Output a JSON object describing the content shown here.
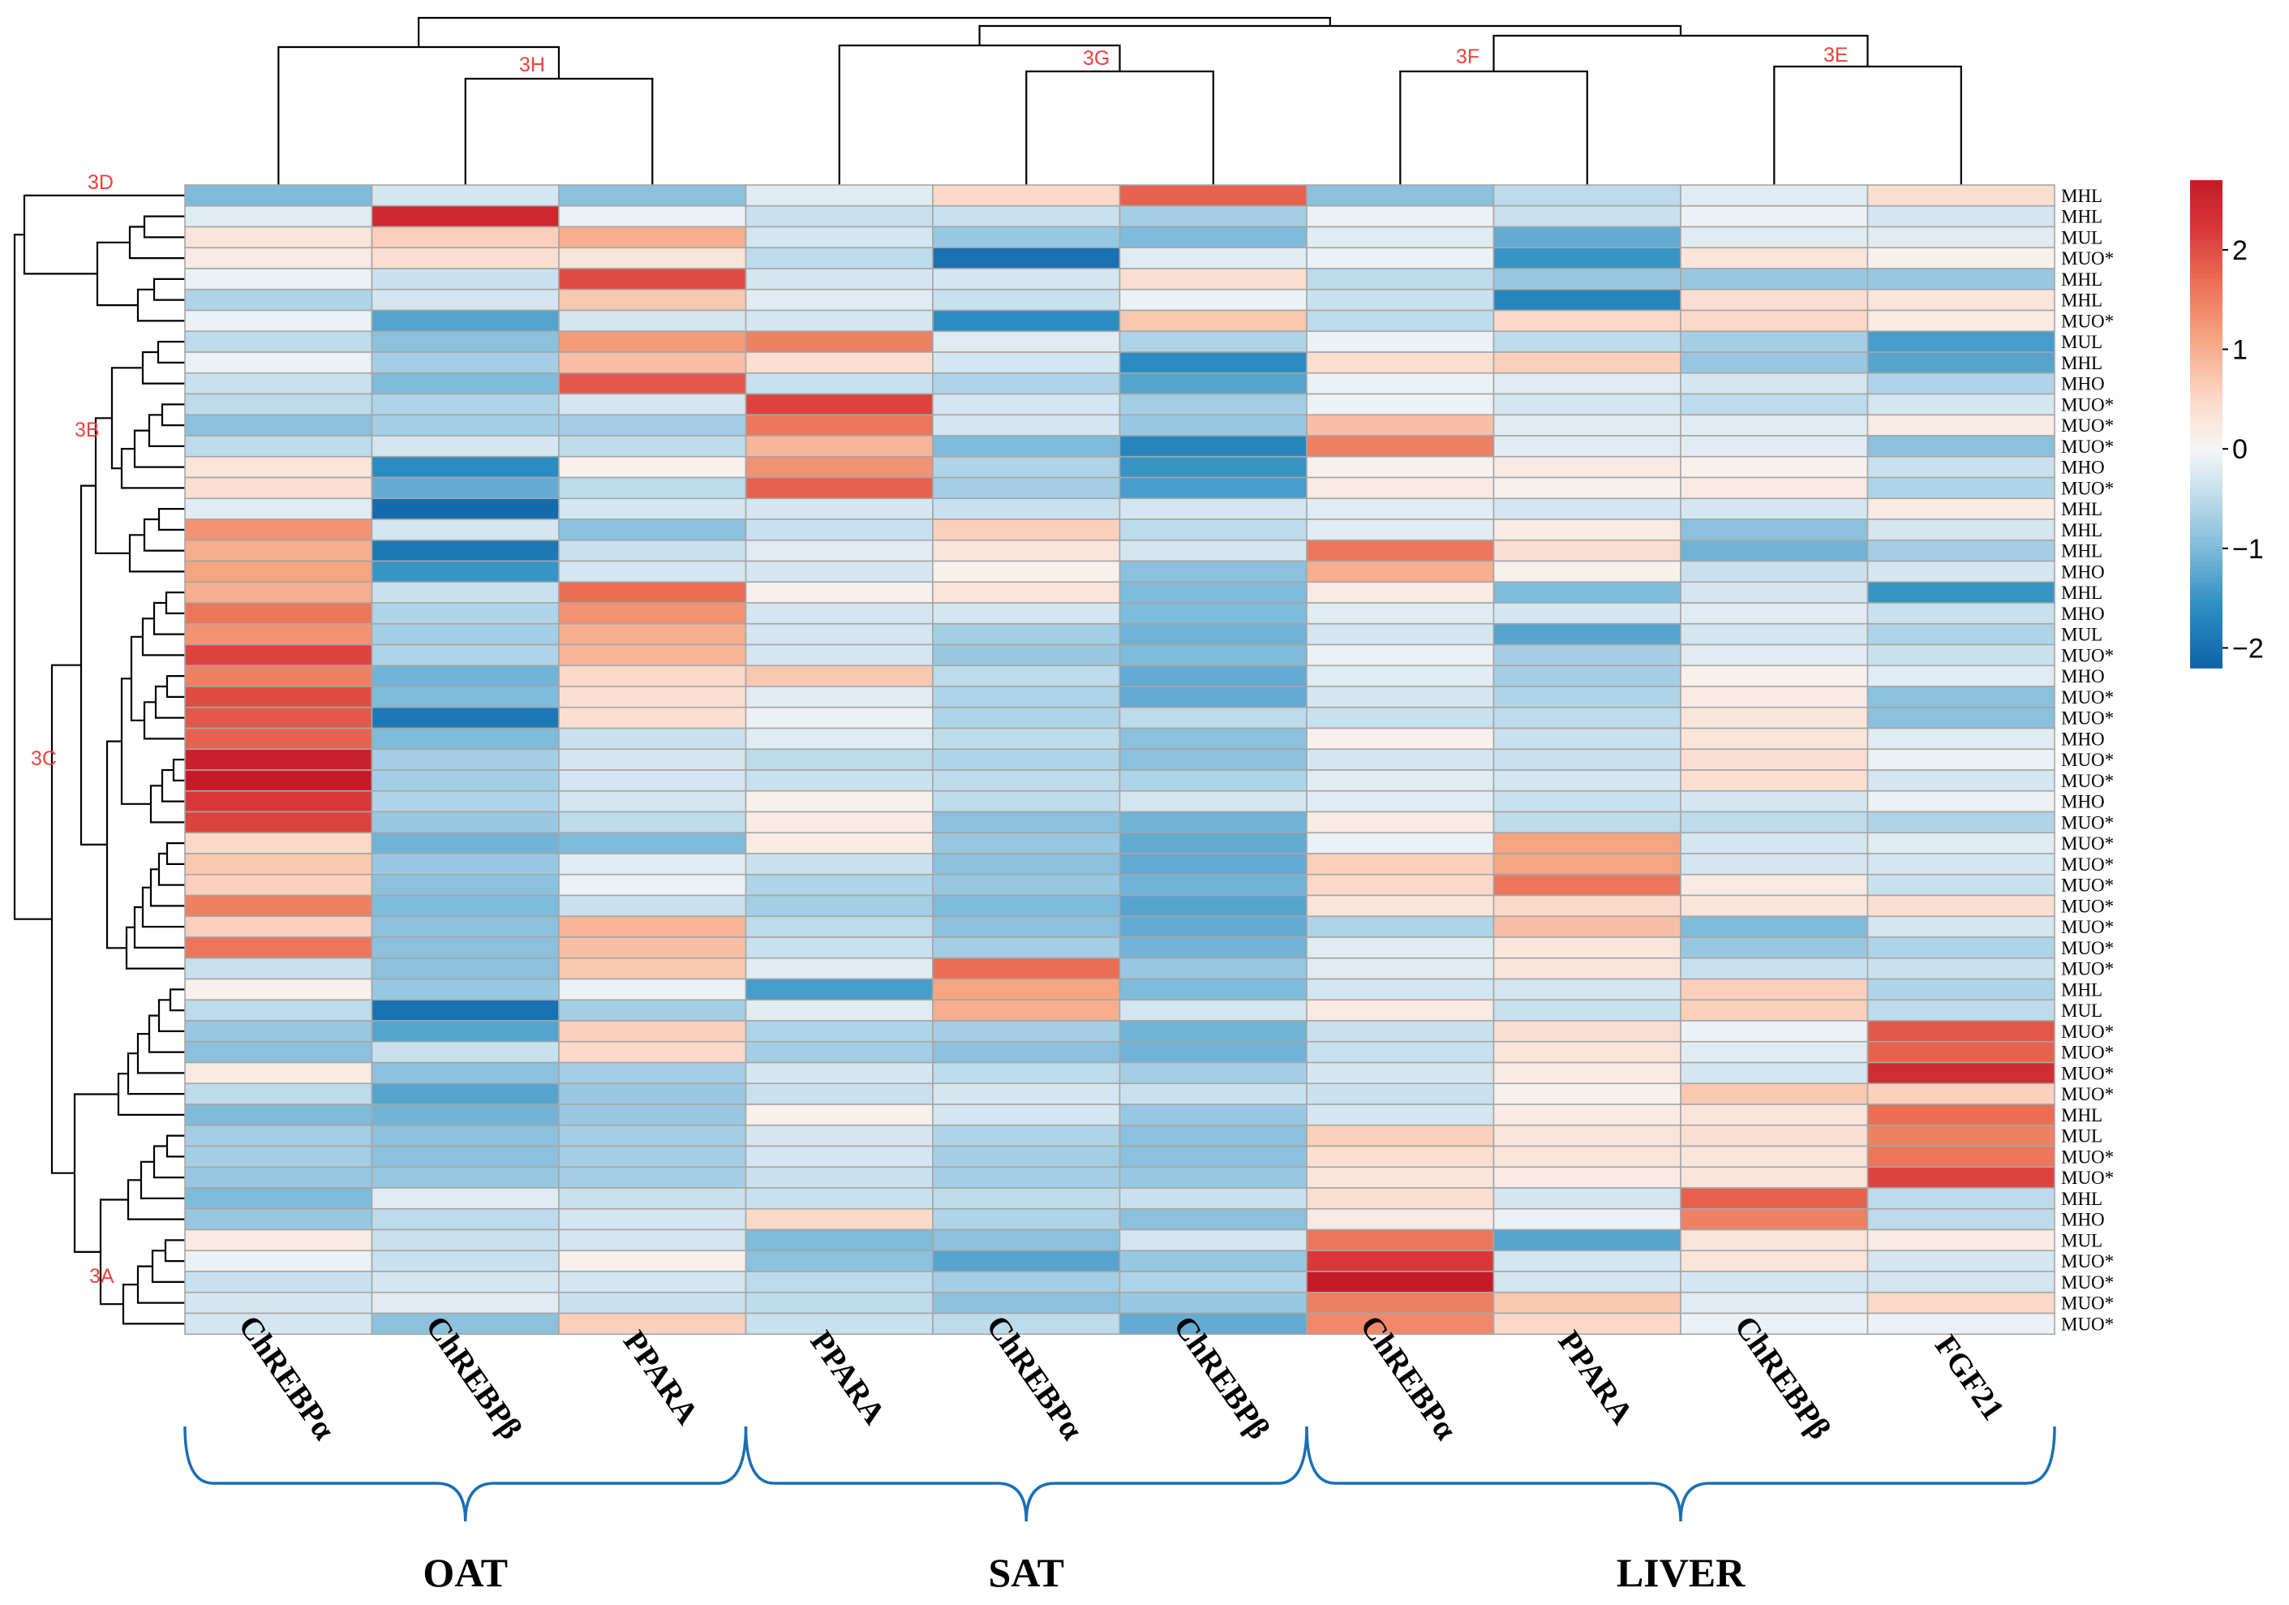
{
  "chart_data": {
    "type": "heatmap",
    "title": "",
    "columns": [
      {
        "label": "ChREBPα",
        "group": "OAT"
      },
      {
        "label": "ChREBPβ",
        "group": "OAT"
      },
      {
        "label": "PPARA",
        "group": "OAT"
      },
      {
        "label": "PPARA",
        "group": "SAT"
      },
      {
        "label": "ChREBPα",
        "group": "SAT"
      },
      {
        "label": "ChREBPβ",
        "group": "SAT"
      },
      {
        "label": "ChREBPα",
        "group": "LIVER"
      },
      {
        "label": "PPARA",
        "group": "LIVER"
      },
      {
        "label": "ChREBPβ",
        "group": "LIVER"
      },
      {
        "label": "FGF21",
        "group": "LIVER"
      }
    ],
    "groups": [
      "OAT",
      "SAT",
      "LIVER"
    ],
    "rows": [
      "MHL",
      "MHL",
      "MUL",
      "MUO*",
      "MHL",
      "MHL",
      "MUO*",
      "MUL",
      "MHL",
      "MHO",
      "MUO*",
      "MUO*",
      "MUO*",
      "MHO",
      "MUO*",
      "MHL",
      "MHL",
      "MHL",
      "MHO",
      "MHL",
      "MHO",
      "MUL",
      "MUO*",
      "MHO",
      "MUO*",
      "MUO*",
      "MHO",
      "MUO*",
      "MUO*",
      "MHO",
      "MUO*",
      "MUO*",
      "MUO*",
      "MUO*",
      "MUO*",
      "MUO*",
      "MUO*",
      "MUO*",
      "MHL",
      "MUL",
      "MUO*",
      "MUO*",
      "MUO*",
      "MUO*",
      "MHL",
      "MUL",
      "MUO*",
      "MUO*",
      "MHL",
      "MHO",
      "MUL",
      "MUO*",
      "MUO*",
      "MUO*",
      "MUO*"
    ],
    "values": [
      [
        -1.0,
        -0.3,
        -0.9,
        -0.2,
        0.5,
        1.8,
        -0.9,
        -0.5,
        -0.2,
        0.4
      ],
      [
        -0.2,
        2.5,
        -0.1,
        -0.4,
        -0.4,
        -0.7,
        -0.1,
        -0.4,
        -0.1,
        -0.3
      ],
      [
        0.3,
        0.6,
        1.0,
        -0.3,
        -0.8,
        -1.0,
        -0.2,
        -1.2,
        -0.2,
        -0.2
      ],
      [
        0.2,
        0.4,
        0.3,
        -0.5,
        -2.0,
        -0.2,
        -0.1,
        -1.5,
        0.3,
        0.1
      ],
      [
        -0.1,
        -0.4,
        2.0,
        -0.3,
        -0.3,
        0.4,
        -0.5,
        -0.8,
        -0.8,
        -0.8
      ],
      [
        -0.6,
        -0.3,
        0.7,
        -0.2,
        -0.4,
        -0.1,
        -0.4,
        -1.7,
        0.4,
        0.3
      ],
      [
        -0.1,
        -1.3,
        -0.3,
        -0.3,
        -1.6,
        0.7,
        -0.5,
        0.5,
        0.5,
        0.2
      ],
      [
        -0.5,
        -0.9,
        1.2,
        1.5,
        -0.2,
        -0.6,
        -0.1,
        -0.5,
        -0.7,
        -1.4
      ],
      [
        -0.1,
        -0.7,
        0.8,
        0.4,
        -0.3,
        -1.6,
        0.4,
        0.6,
        -0.8,
        -1.3
      ],
      [
        -0.4,
        -1.0,
        1.9,
        -0.4,
        -0.6,
        -1.3,
        -0.1,
        -0.2,
        -0.3,
        -0.6
      ],
      [
        -0.5,
        -0.6,
        -0.3,
        2.1,
        -0.3,
        -0.7,
        -0.1,
        -0.3,
        -0.5,
        -0.3
      ],
      [
        -0.9,
        -0.7,
        -0.7,
        1.6,
        -0.3,
        -0.8,
        0.8,
        -0.2,
        -0.2,
        0.2
      ],
      [
        -0.5,
        -0.3,
        -0.5,
        0.9,
        -1.0,
        -1.7,
        1.5,
        -0.2,
        -0.2,
        -0.9
      ],
      [
        0.3,
        -1.6,
        0.1,
        1.3,
        -0.6,
        -1.5,
        0.1,
        0.2,
        0.1,
        -0.4
      ],
      [
        0.4,
        -1.2,
        -0.5,
        1.8,
        -0.7,
        -1.4,
        0.2,
        0.1,
        0.2,
        -0.6
      ],
      [
        -0.2,
        -2.1,
        -0.3,
        -0.3,
        -0.4,
        -0.3,
        -0.2,
        -0.3,
        -0.3,
        0.2
      ],
      [
        1.3,
        -0.3,
        -0.9,
        -0.4,
        0.6,
        -0.5,
        -0.2,
        0.2,
        -0.9,
        -0.3
      ],
      [
        1.0,
        -1.9,
        -0.4,
        -0.2,
        0.3,
        -0.3,
        1.6,
        0.4,
        -1.1,
        -0.7
      ],
      [
        1.1,
        -1.5,
        -0.3,
        -0.3,
        0.1,
        -0.9,
        1.0,
        0.1,
        -0.4,
        -0.3
      ],
      [
        1.0,
        -0.4,
        1.7,
        0.1,
        0.3,
        -1.0,
        0.2,
        -1.0,
        -0.3,
        -1.5
      ],
      [
        1.6,
        -0.6,
        1.3,
        -0.3,
        -0.3,
        -1.0,
        -0.2,
        -0.3,
        -0.2,
        -0.4
      ],
      [
        1.3,
        -0.7,
        1.0,
        -0.3,
        -0.7,
        -1.1,
        -0.3,
        -1.3,
        -0.3,
        -0.6
      ],
      [
        2.1,
        -0.6,
        0.9,
        -0.3,
        -0.8,
        -1.0,
        -0.1,
        -0.7,
        -0.2,
        -0.4
      ],
      [
        1.5,
        -1.1,
        0.5,
        0.7,
        -0.5,
        -1.2,
        -0.2,
        -0.7,
        0.1,
        -0.2
      ],
      [
        2.0,
        -1.0,
        0.4,
        -0.2,
        -0.6,
        -1.2,
        -0.3,
        -0.6,
        0.2,
        -0.9
      ],
      [
        1.9,
        -1.9,
        0.4,
        -0.1,
        -0.6,
        -0.5,
        -0.4,
        -0.5,
        0.3,
        -0.9
      ],
      [
        1.8,
        -1.0,
        -0.4,
        -0.2,
        -0.5,
        -0.9,
        0.1,
        -0.4,
        0.3,
        -0.2
      ],
      [
        2.6,
        -0.7,
        -0.3,
        -0.5,
        -0.6,
        -0.9,
        -0.3,
        -0.4,
        0.4,
        -0.1
      ],
      [
        2.7,
        -0.7,
        -0.3,
        -0.4,
        -0.5,
        -0.6,
        -0.2,
        -0.3,
        0.4,
        -0.3
      ],
      [
        2.2,
        -0.6,
        -0.3,
        0.1,
        -0.5,
        -0.3,
        -0.2,
        -0.4,
        -0.3,
        -0.1
      ],
      [
        2.1,
        -0.8,
        -0.5,
        0.2,
        -0.9,
        -1.1,
        0.2,
        -0.5,
        -0.5,
        -0.6
      ],
      [
        0.5,
        -1.1,
        -1.0,
        0.2,
        -0.8,
        -1.2,
        -0.1,
        1.1,
        -0.3,
        -0.2
      ],
      [
        0.7,
        -0.8,
        -0.2,
        -0.4,
        -0.9,
        -1.2,
        0.6,
        1.1,
        -0.3,
        -0.3
      ],
      [
        0.6,
        -0.9,
        -0.1,
        -0.6,
        -0.8,
        -1.1,
        0.5,
        1.6,
        0.2,
        -0.4
      ],
      [
        1.5,
        -1.0,
        -0.4,
        -0.7,
        -1.0,
        -1.3,
        0.3,
        0.5,
        0.3,
        0.4
      ],
      [
        0.6,
        -0.9,
        0.9,
        -0.5,
        -0.9,
        -1.2,
        -0.6,
        0.8,
        -1.0,
        -0.3
      ],
      [
        1.6,
        -0.9,
        0.8,
        -0.4,
        -0.7,
        -1.1,
        -0.2,
        0.3,
        -0.8,
        -0.6
      ],
      [
        -0.4,
        -0.9,
        0.7,
        -0.2,
        1.7,
        -0.8,
        -0.2,
        0.3,
        -0.4,
        -0.4
      ],
      [
        0.1,
        -0.8,
        -0.1,
        -1.4,
        1.1,
        -1.0,
        -0.3,
        -0.3,
        0.6,
        -0.6
      ],
      [
        -0.5,
        -2.0,
        -0.7,
        -0.2,
        1.0,
        -0.3,
        0.2,
        -0.4,
        0.6,
        -0.5
      ],
      [
        -0.8,
        -1.3,
        0.6,
        -0.6,
        -0.7,
        -1.1,
        -0.4,
        0.4,
        -0.1,
        1.9
      ],
      [
        -0.9,
        -0.4,
        0.5,
        -0.7,
        -0.9,
        -1.1,
        -0.4,
        0.3,
        -0.2,
        1.8
      ],
      [
        0.2,
        -0.9,
        -0.7,
        -0.3,
        -0.5,
        -0.7,
        -0.3,
        0.2,
        -0.3,
        2.4
      ],
      [
        -0.5,
        -1.3,
        -0.8,
        -0.4,
        -0.3,
        -0.4,
        -0.4,
        0.1,
        0.7,
        0.6
      ],
      [
        -1.0,
        -1.1,
        -0.8,
        0.1,
        -0.3,
        -0.8,
        -0.3,
        0.2,
        0.3,
        1.7
      ],
      [
        -0.7,
        -0.9,
        -0.7,
        -0.3,
        -0.6,
        -0.9,
        0.6,
        0.3,
        0.4,
        1.5
      ],
      [
        -0.7,
        -0.9,
        -0.7,
        -0.3,
        -0.7,
        -0.9,
        0.4,
        0.3,
        0.3,
        1.6
      ],
      [
        -0.8,
        -0.8,
        -0.7,
        -0.4,
        -0.7,
        -0.8,
        0.3,
        0.2,
        0.3,
        2.1
      ],
      [
        -1.0,
        -0.2,
        -0.4,
        -0.4,
        -0.5,
        -0.4,
        0.4,
        -0.3,
        1.8,
        -0.5
      ],
      [
        -0.8,
        -0.5,
        -0.3,
        0.5,
        -0.6,
        -0.9,
        0.2,
        -0.1,
        1.5,
        -0.5
      ],
      [
        0.2,
        -0.4,
        -0.3,
        -1.0,
        -0.9,
        -0.3,
        1.6,
        -1.3,
        0.3,
        0.2
      ],
      [
        -0.1,
        -0.4,
        0.1,
        -0.9,
        -1.3,
        -0.8,
        2.2,
        -0.3,
        0.3,
        -0.3
      ],
      [
        -0.4,
        -0.3,
        -0.3,
        -0.5,
        -0.7,
        -0.6,
        2.7,
        -0.3,
        -0.3,
        -0.3
      ],
      [
        -0.3,
        -0.2,
        -0.4,
        -0.5,
        -0.9,
        -0.8,
        1.5,
        0.7,
        -0.2,
        0.5
      ],
      [
        -0.3,
        -0.9,
        0.6,
        -0.4,
        -0.5,
        -1.2,
        1.4,
        0.5,
        -0.1,
        -0.1
      ]
    ],
    "colorbar": {
      "ticks": [
        2,
        1,
        0,
        -1,
        -2
      ],
      "tick_labels": [
        "2",
        "1",
        "0",
        "−1",
        "−2"
      ],
      "min": -2.2,
      "max": 2.7
    },
    "colors": {
      "high": "#c51b28",
      "mid": "#f6f6f6",
      "low": "#1063a8",
      "grid": "#a6a6a6",
      "brace": "#1a6fb4",
      "cluster_label": "#e8423f"
    },
    "cluster_labels": [
      "3A",
      "3B",
      "3C",
      "3D",
      "3E",
      "3F",
      "3G",
      "3H"
    ],
    "legend_position": "right"
  }
}
